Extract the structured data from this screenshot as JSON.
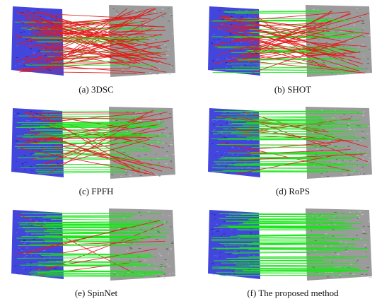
{
  "figure": {
    "colors": {
      "source_cloud": "#2f32d8",
      "target_cloud": "#8a8a8a",
      "correct_match": "#19e619",
      "wrong_match": "#e31a1a",
      "caption_text": "#111111"
    },
    "panels": [
      {
        "id": "a",
        "caption": "(a) 3DSC",
        "correct_ratio": 0.15,
        "match_count": 70
      },
      {
        "id": "b",
        "caption": "(b) SHOT",
        "correct_ratio": 0.55,
        "match_count": 70
      },
      {
        "id": "c",
        "caption": "(c) FPFH",
        "correct_ratio": 0.72,
        "match_count": 70
      },
      {
        "id": "d",
        "caption": "(d) RoPS",
        "correct_ratio": 0.8,
        "match_count": 70
      },
      {
        "id": "e",
        "caption": "(e) SpinNet",
        "correct_ratio": 0.86,
        "match_count": 70
      },
      {
        "id": "f",
        "caption": "(f) The proposed method",
        "correct_ratio": 0.99,
        "match_count": 70
      }
    ]
  }
}
